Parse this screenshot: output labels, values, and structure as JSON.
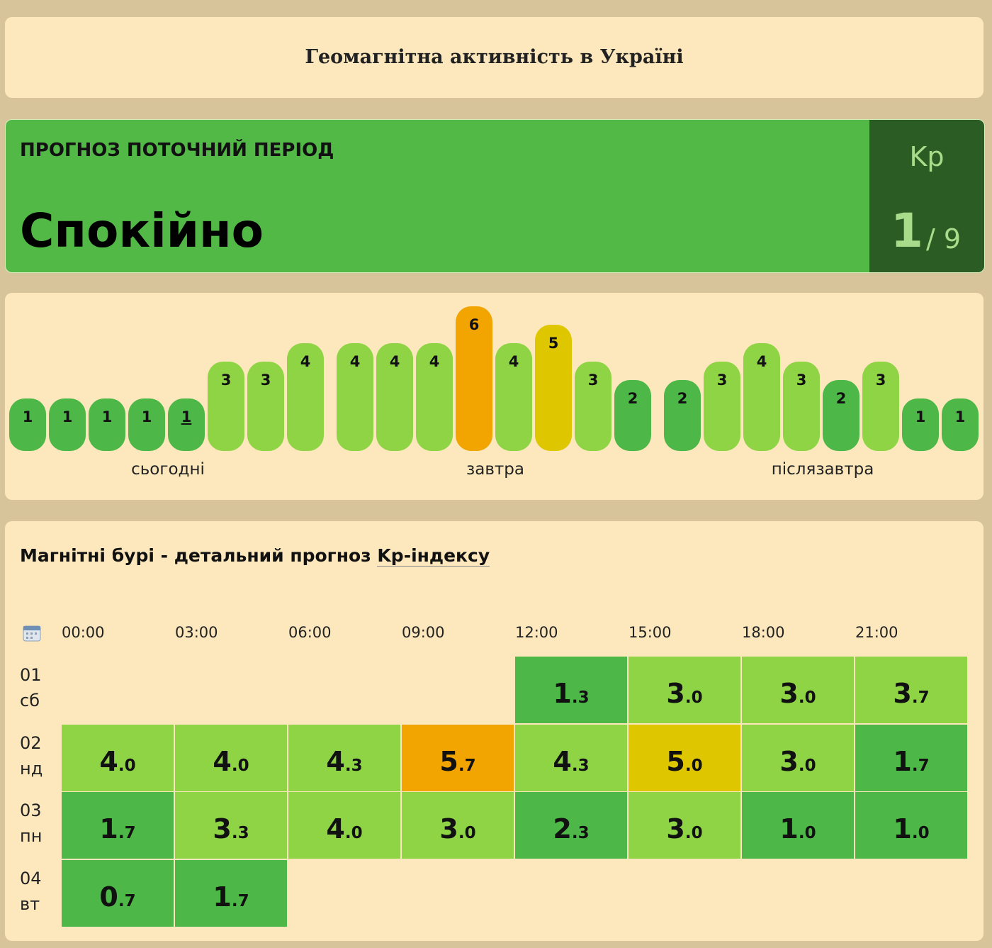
{
  "header": {
    "title": "Геомагнітна активність в Україні"
  },
  "current": {
    "label": "ПРОГНОЗ ПОТОЧНИЙ ПЕРІОД",
    "status": "Спокійно",
    "index_name": "Kp",
    "value": "1",
    "max": "/ 9"
  },
  "bars": {
    "days": [
      {
        "label": "сьогодні",
        "values": [
          1,
          1,
          1,
          1,
          1,
          3,
          3,
          4
        ]
      },
      {
        "label": "завтра",
        "values": [
          4,
          4,
          4,
          6,
          4,
          5,
          3,
          2
        ]
      },
      {
        "label": "післязавтра",
        "values": [
          2,
          3,
          4,
          3,
          2,
          3,
          1,
          1
        ]
      }
    ]
  },
  "table": {
    "title": "Магнітні бурі - детальний прогноз",
    "link": "Kp-індексу",
    "hours": [
      "00:00",
      "03:00",
      "06:00",
      "09:00",
      "12:00",
      "15:00",
      "18:00",
      "21:00"
    ],
    "rows": [
      {
        "date": "01",
        "day": "сб",
        "values": [
          null,
          null,
          null,
          null,
          "1.3",
          "3.0",
          "3.0",
          "3.7"
        ]
      },
      {
        "date": "02",
        "day": "нд",
        "values": [
          "4.0",
          "4.0",
          "4.3",
          "5.7",
          "4.3",
          "5.0",
          "3.0",
          "1.7"
        ]
      },
      {
        "date": "03",
        "day": "пн",
        "values": [
          "1.7",
          "3.3",
          "4.0",
          "3.0",
          "2.3",
          "3.0",
          "1.0",
          "1.0"
        ]
      },
      {
        "date": "04",
        "day": "вт",
        "values": [
          "0.7",
          "1.7",
          null,
          null,
          null,
          null,
          null,
          null
        ]
      }
    ]
  }
}
